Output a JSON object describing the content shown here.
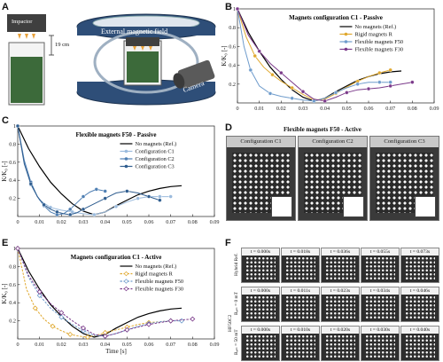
{
  "panel_labels": {
    "a": "A",
    "b": "B",
    "c": "C",
    "d": "D",
    "e": "E",
    "f": "F"
  },
  "panel_a": {
    "impactor_label": "Impactor",
    "height_label": "19 cm",
    "field_label": "External magnetic field",
    "camera_label": "Camera"
  },
  "axis_common": {
    "ylabel": "K/K₀ [-]",
    "xlabel": "Time [s]",
    "y_ticks": [
      "0.2",
      "0.4",
      "0.6",
      "0.8",
      "1"
    ],
    "x_ticks": [
      "0",
      "0.01",
      "0.02",
      "0.03",
      "0.04",
      "0.05",
      "0.06",
      "0.07",
      "0.08",
      "0.09"
    ]
  },
  "chart_data": [
    {
      "id": "B",
      "type": "line",
      "title": "Magnets configuration C1 - Passive",
      "xlabel": "",
      "ylabel": "K/K₀ [-]",
      "xlim": [
        0,
        0.09
      ],
      "ylim": [
        0,
        1
      ],
      "legend_position": "top-right",
      "series": [
        {
          "name": "No magnets (Ref.)",
          "color": "#000000",
          "marker": "none",
          "x": [
            0,
            0.005,
            0.01,
            0.015,
            0.02,
            0.025,
            0.03,
            0.035,
            0.04,
            0.045,
            0.05,
            0.055,
            0.06,
            0.065,
            0.07,
            0.075
          ],
          "y": [
            1,
            0.75,
            0.55,
            0.38,
            0.25,
            0.14,
            0.06,
            0.02,
            0.05,
            0.12,
            0.18,
            0.24,
            0.28,
            0.31,
            0.33,
            0.34
          ]
        },
        {
          "name": "Rigid magnets R",
          "color": "#e0a82e",
          "marker": "circle",
          "x": [
            0,
            0.004,
            0.008,
            0.012,
            0.016,
            0.02,
            0.025,
            0.03,
            0.035,
            0.04,
            0.045,
            0.05,
            0.055,
            0.06,
            0.065,
            0.07
          ],
          "y": [
            1,
            0.7,
            0.5,
            0.38,
            0.3,
            0.23,
            0.16,
            0.09,
            0.03,
            0.04,
            0.1,
            0.17,
            0.23,
            0.28,
            0.32,
            0.35
          ]
        },
        {
          "name": "Flexible magnets F50",
          "color": "#6f9ccc",
          "marker": "circle",
          "x": [
            0,
            0.003,
            0.006,
            0.01,
            0.015,
            0.02,
            0.025,
            0.03,
            0.035,
            0.04,
            0.045,
            0.05,
            0.055,
            0.06,
            0.065,
            0.07
          ],
          "y": [
            1,
            0.6,
            0.35,
            0.18,
            0.1,
            0.07,
            0.05,
            0.03,
            0.02,
            0.05,
            0.11,
            0.16,
            0.2,
            0.22,
            0.22,
            0.22
          ]
        },
        {
          "name": "Flexible magnets F30",
          "color": "#7b3a8a",
          "marker": "circle",
          "x": [
            0,
            0.005,
            0.01,
            0.015,
            0.02,
            0.025,
            0.03,
            0.035,
            0.04,
            0.045,
            0.05,
            0.055,
            0.06,
            0.065,
            0.07,
            0.075,
            0.08
          ],
          "y": [
            1,
            0.72,
            0.55,
            0.42,
            0.32,
            0.22,
            0.12,
            0.04,
            0.02,
            0.06,
            0.11,
            0.14,
            0.15,
            0.16,
            0.18,
            0.2,
            0.22
          ]
        }
      ]
    },
    {
      "id": "C",
      "type": "line",
      "title": "Flexible magnets F50 - Passive",
      "xlabel": "",
      "ylabel": "K/K₀ [-]",
      "xlim": [
        0,
        0.09
      ],
      "ylim": [
        0,
        1
      ],
      "legend_position": "top-right",
      "series": [
        {
          "name": "No magnets (Ref.)",
          "color": "#000000",
          "marker": "none",
          "x": [
            0,
            0.005,
            0.01,
            0.015,
            0.02,
            0.025,
            0.03,
            0.035,
            0.04,
            0.045,
            0.05,
            0.055,
            0.06,
            0.065,
            0.07,
            0.075
          ],
          "y": [
            1,
            0.75,
            0.55,
            0.38,
            0.25,
            0.14,
            0.06,
            0.02,
            0.05,
            0.12,
            0.18,
            0.24,
            0.28,
            0.31,
            0.33,
            0.34
          ]
        },
        {
          "name": "Configuration C1",
          "color": "#9bbbdd",
          "marker": "circle",
          "x": [
            0,
            0.003,
            0.006,
            0.01,
            0.015,
            0.02,
            0.025,
            0.03,
            0.035,
            0.04,
            0.045,
            0.05,
            0.055,
            0.06,
            0.065,
            0.07
          ],
          "y": [
            1,
            0.6,
            0.35,
            0.18,
            0.1,
            0.07,
            0.05,
            0.03,
            0.02,
            0.05,
            0.11,
            0.16,
            0.2,
            0.22,
            0.22,
            0.22
          ]
        },
        {
          "name": "Configuration C2",
          "color": "#4f7fb3",
          "marker": "circle",
          "x": [
            0,
            0.003,
            0.006,
            0.009,
            0.012,
            0.015,
            0.018,
            0.021,
            0.024,
            0.027,
            0.03,
            0.033,
            0.036,
            0.04
          ],
          "y": [
            1,
            0.62,
            0.38,
            0.22,
            0.12,
            0.05,
            0.02,
            0.03,
            0.08,
            0.15,
            0.22,
            0.27,
            0.3,
            0.28
          ]
        },
        {
          "name": "Configuration C3",
          "color": "#2f5d8f",
          "marker": "circle",
          "x": [
            0,
            0.003,
            0.006,
            0.009,
            0.012,
            0.015,
            0.018,
            0.021,
            0.024,
            0.027,
            0.03,
            0.035,
            0.04,
            0.045,
            0.05,
            0.055,
            0.06,
            0.065
          ],
          "y": [
            1,
            0.58,
            0.36,
            0.22,
            0.13,
            0.08,
            0.05,
            0.03,
            0.02,
            0.04,
            0.08,
            0.14,
            0.2,
            0.26,
            0.28,
            0.26,
            0.22,
            0.18
          ]
        }
      ]
    },
    {
      "id": "E",
      "type": "line",
      "title": "Magnets configuration C1 - Active",
      "xlabel": "Time [s]",
      "ylabel": "K/K₀ [-]",
      "xlim": [
        0,
        0.09
      ],
      "ylim": [
        0,
        1
      ],
      "legend_position": "top-right",
      "series": [
        {
          "name": "No magnets (Ref.)",
          "color": "#000000",
          "marker": "none",
          "x": [
            0,
            0.005,
            0.01,
            0.015,
            0.02,
            0.025,
            0.03,
            0.035,
            0.04,
            0.045,
            0.05,
            0.055,
            0.06,
            0.065,
            0.07,
            0.075
          ],
          "y": [
            1,
            0.75,
            0.55,
            0.38,
            0.25,
            0.14,
            0.06,
            0.02,
            0.05,
            0.12,
            0.18,
            0.24,
            0.28,
            0.31,
            0.33,
            0.34
          ]
        },
        {
          "name": "Rigid magnets R",
          "color": "#e0a82e",
          "marker": "diamond",
          "x": [
            0,
            0.004,
            0.008,
            0.012,
            0.016,
            0.02,
            0.024,
            0.028,
            0.032,
            0.036,
            0.04,
            0.045,
            0.05,
            0.055,
            0.06,
            0.065,
            0.07
          ],
          "y": [
            1,
            0.55,
            0.34,
            0.22,
            0.14,
            0.09,
            0.05,
            0.03,
            0.02,
            0.04,
            0.07,
            0.1,
            0.13,
            0.16,
            0.18,
            0.19,
            0.2
          ]
        },
        {
          "name": "Flexible magnets F50",
          "color": "#6f9ccc",
          "marker": "diamond",
          "x": [
            0,
            0.005,
            0.01,
            0.015,
            0.02,
            0.025,
            0.03,
            0.035,
            0.04,
            0.045,
            0.05,
            0.055,
            0.06,
            0.065,
            0.07,
            0.075
          ],
          "y": [
            1,
            0.68,
            0.48,
            0.34,
            0.24,
            0.16,
            0.09,
            0.04,
            0.03,
            0.06,
            0.1,
            0.14,
            0.17,
            0.19,
            0.2,
            0.2
          ]
        },
        {
          "name": "Flexible magnets F30",
          "color": "#7b3a8a",
          "marker": "diamond",
          "x": [
            0,
            0.005,
            0.01,
            0.015,
            0.02,
            0.025,
            0.03,
            0.035,
            0.04,
            0.045,
            0.05,
            0.055,
            0.06,
            0.065,
            0.07,
            0.075,
            0.08
          ],
          "y": [
            1,
            0.7,
            0.52,
            0.39,
            0.29,
            0.2,
            0.12,
            0.05,
            0.03,
            0.06,
            0.1,
            0.13,
            0.16,
            0.18,
            0.2,
            0.21,
            0.22
          ]
        }
      ]
    }
  ],
  "panel_d": {
    "title": "Flexible magnets F50 - Active",
    "configs": [
      "Configuration C1",
      "Configuration C2",
      "Configuration C3"
    ]
  },
  "panel_f": {
    "rows": [
      {
        "label": "Hybrid Ref.",
        "times": [
          "t = 0.000s",
          "t = 0.018s",
          "t = 0.036s",
          "t = 0.055s",
          "t = 0.073s"
        ]
      },
      {
        "label": "Bₐₙₜ = 0 mT",
        "times": [
          "t = 0.000s",
          "t = 0.011s",
          "t = 0.023s",
          "t = 0.034s",
          "t = 0.046s"
        ]
      },
      {
        "label": "Bₐₙₜ = 50 mT",
        "times": [
          "t = 0.000s",
          "t = 0.010s",
          "t = 0.020s",
          "t = 0.030s",
          "t = 0.040s"
        ]
      }
    ],
    "group_label": "HF50C2"
  }
}
